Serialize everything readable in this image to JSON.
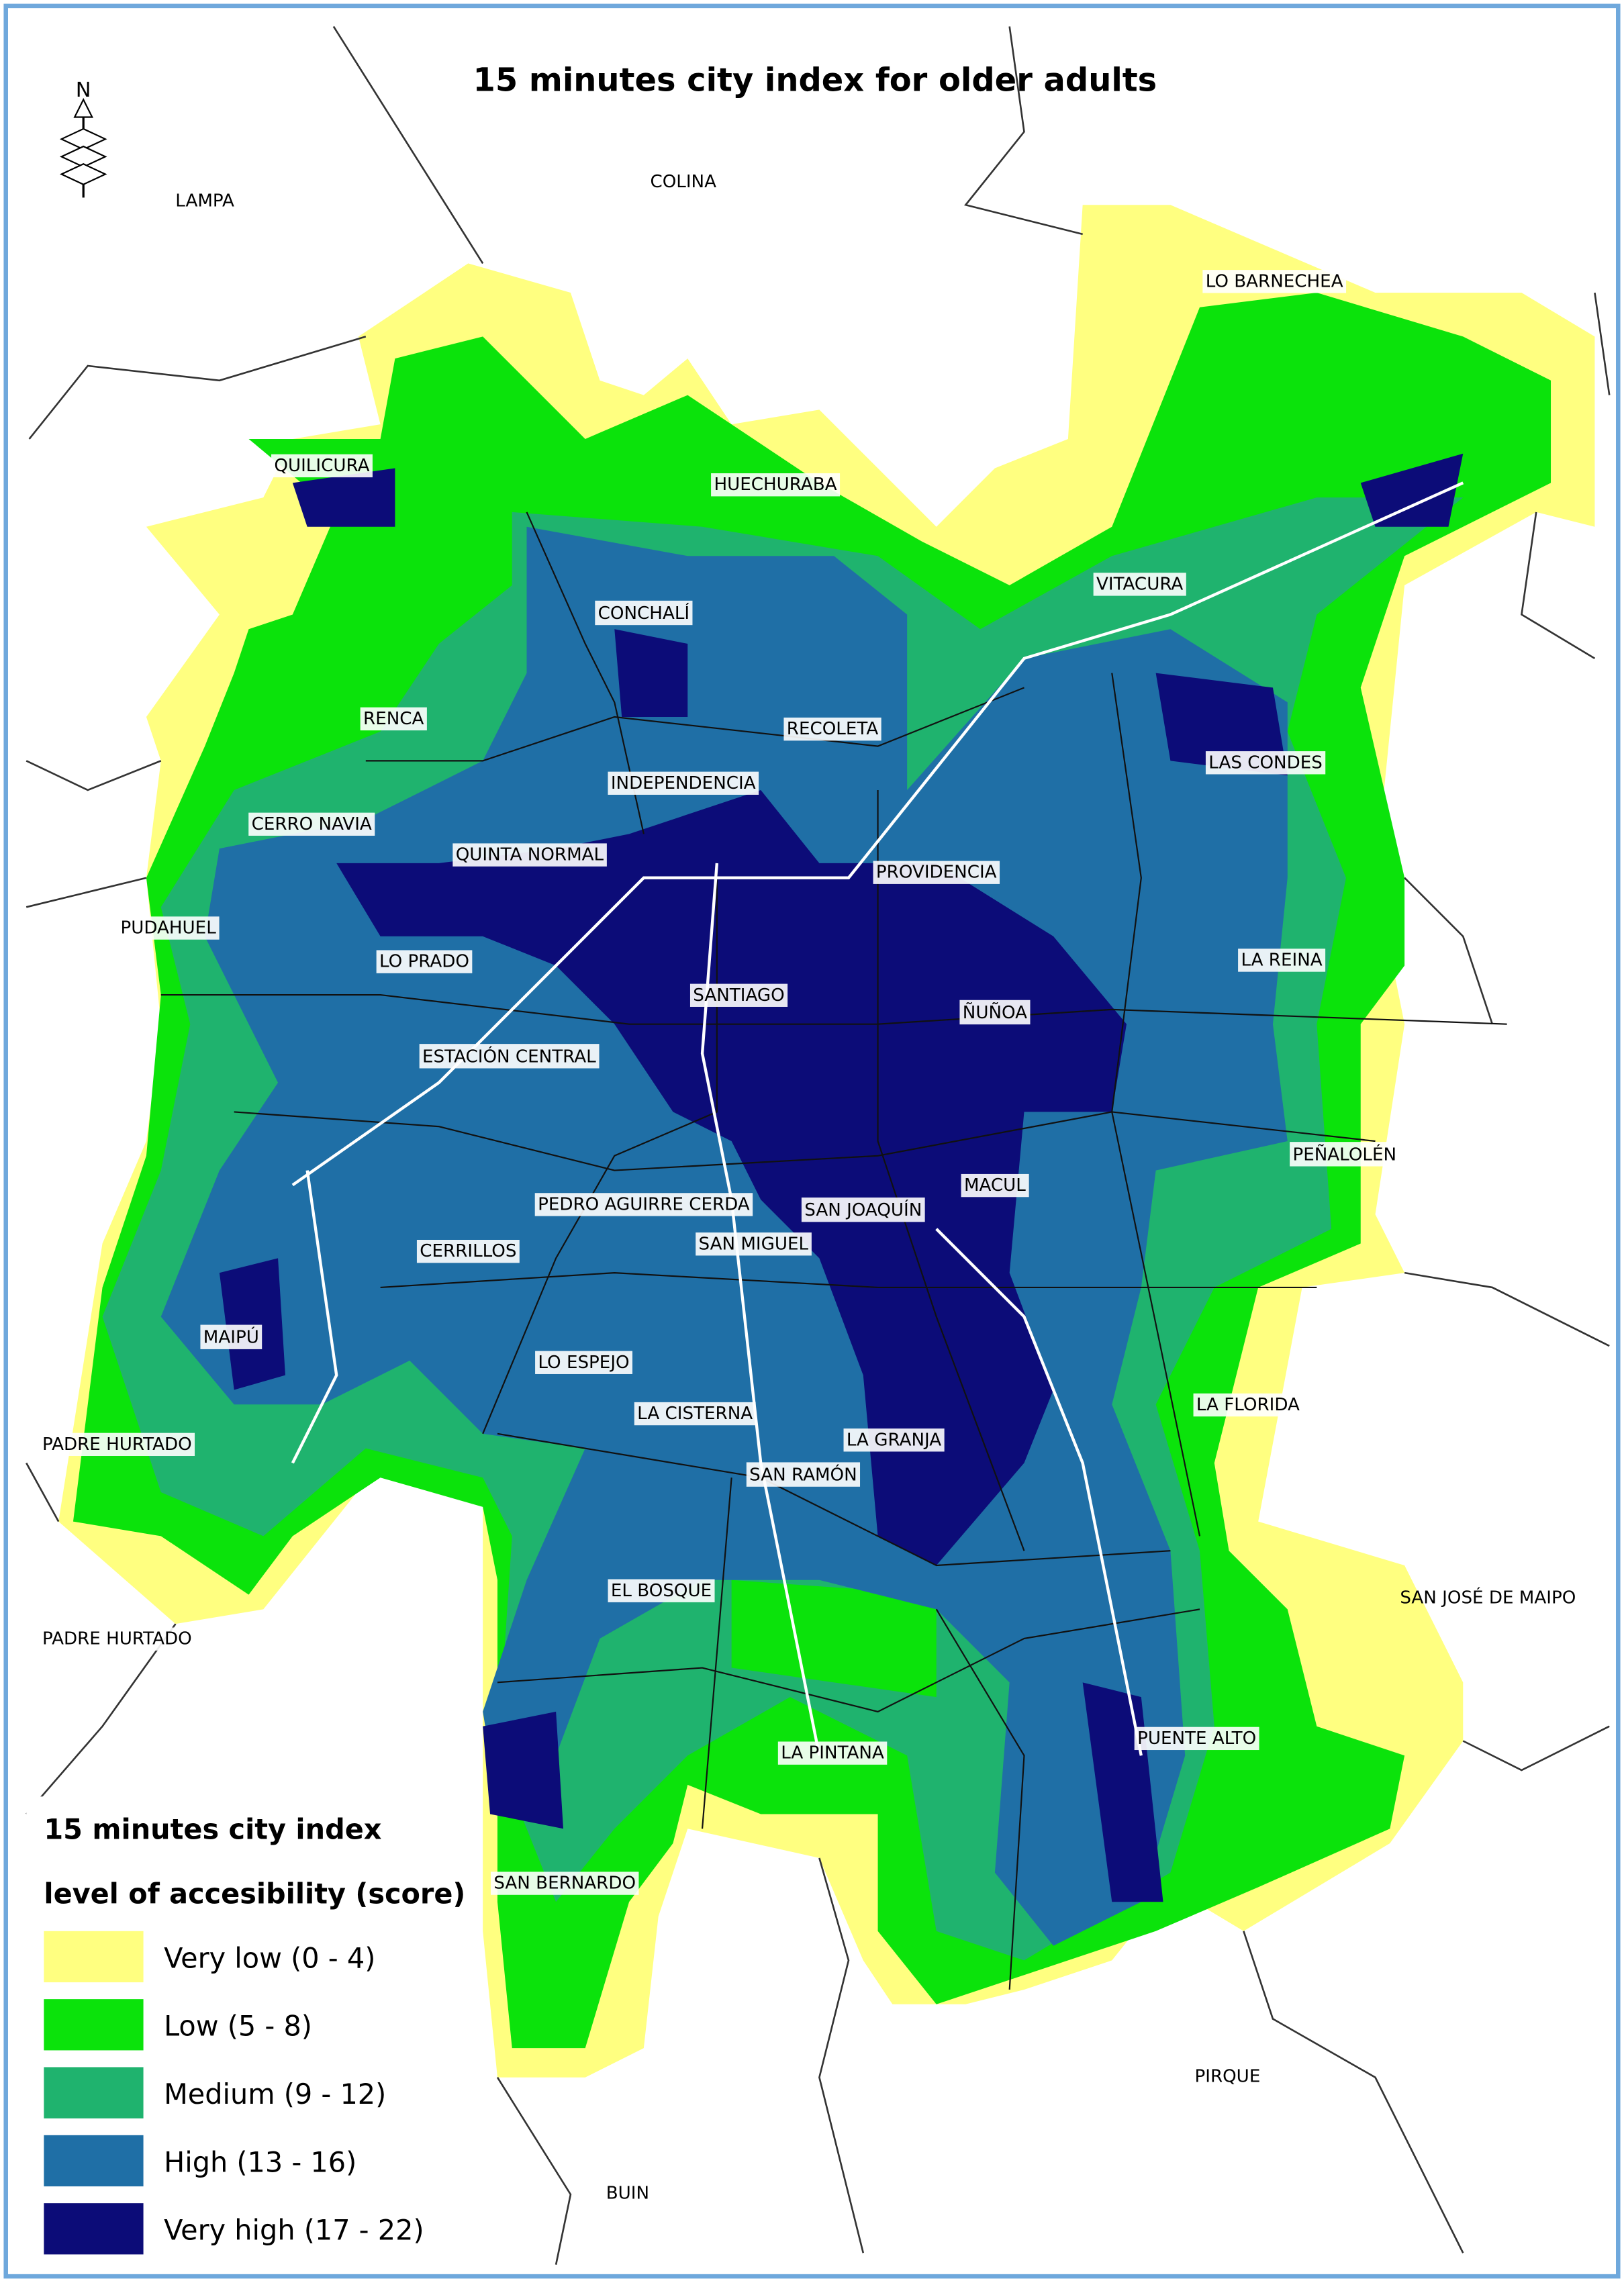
{
  "title": "15 minutes city index for older adults",
  "north": "N",
  "places": [
    "LAMPA",
    "COLINA",
    "LO BARNECHEA",
    "QUILICURA",
    "HUECHURABA",
    "VITACURA",
    "CONCHALÍ",
    "RENCA",
    "RECOLETA",
    "LAS CONDES",
    "INDEPENDENCIA",
    "CERRO NAVIA",
    "QUINTA NORMAL",
    "PROVIDENCIA",
    "PUDAHUEL",
    "LO PRADO",
    "LA REINA",
    "SANTIAGO",
    "ÑUÑOA",
    "ESTACIÓN CENTRAL",
    "PEÑALOLÉN",
    "MACUL",
    "PEDRO AGUIRRE CERDA",
    "SAN JOAQUÍN",
    "SAN MIGUEL",
    "CERRILLOS",
    "MAIPÚ",
    "LO ESPEJO",
    "LA FLORIDA",
    "LA CISTERNA",
    "LA GRANJA",
    "SAN RAMÓN",
    "PADRE HURTADO",
    "SAN JOSÉ DE MAIPO",
    "EL BOSQUE",
    "PADRE HURTADO",
    "LA PINTANA",
    "PUENTE ALTO",
    "SAN BERNARDO",
    "PIRQUE",
    "BUIN"
  ],
  "legend": {
    "title_lines": [
      "15 minutes city index",
      "level of accesibility (score)"
    ],
    "items": [
      {
        "label": "Very low (0 - 4)",
        "color": "#ffff80"
      },
      {
        "label": "Low (5 - 8)",
        "color": "#0be30b"
      },
      {
        "label": "Medium (9 - 12)",
        "color": "#1fb36e"
      },
      {
        "label": "High (13 - 16)",
        "color": "#1f6fa6"
      },
      {
        "label": "Very high (17 - 22)",
        "color": "#0c0c78"
      }
    ]
  }
}
